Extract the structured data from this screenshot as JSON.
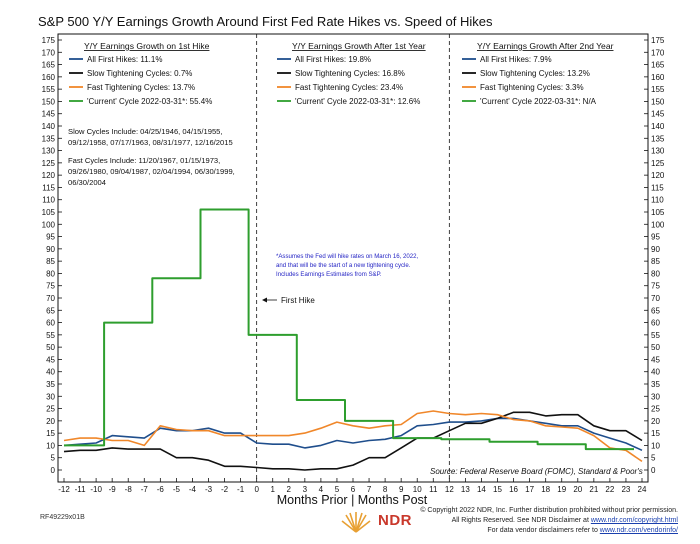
{
  "chart_data": {
    "type": "line",
    "title": "S&P 500 Y/Y Earnings Growth Around First Fed Rate Hikes vs. Speed of Hikes",
    "xlabel": "Months Prior | Months Post",
    "ylabel": "",
    "xlim": [
      -12,
      24
    ],
    "ylim": [
      0,
      175
    ],
    "y_ticks": [
      0,
      5,
      10,
      15,
      20,
      25,
      30,
      35,
      40,
      45,
      50,
      55,
      60,
      65,
      70,
      75,
      80,
      85,
      90,
      95,
      100,
      105,
      110,
      115,
      120,
      125,
      130,
      135,
      140,
      145,
      150,
      155,
      160,
      165,
      170,
      175
    ],
    "x_ticks": [
      -12,
      -11,
      -10,
      -9,
      -8,
      -7,
      -6,
      -5,
      -4,
      -3,
      -2,
      -1,
      0,
      1,
      2,
      3,
      4,
      5,
      6,
      7,
      8,
      9,
      10,
      11,
      12,
      13,
      14,
      15,
      16,
      17,
      18,
      19,
      20,
      21,
      22,
      23,
      24
    ],
    "x_tick_labels": [
      "-12",
      "-11",
      "-10",
      "-9",
      "-8",
      "-7",
      "-6",
      "-5",
      "-4",
      "-3",
      "-2",
      "-1",
      "0",
      "1",
      "2",
      "3",
      "4",
      "5",
      "6",
      "7",
      "8",
      "9",
      "10",
      "11",
      "12",
      "13",
      "14",
      "15",
      "16",
      "17",
      "18",
      "19",
      "20",
      "21",
      "22",
      "23",
      "24"
    ],
    "vertical_markers": [
      0,
      12
    ],
    "series": [
      {
        "name": "All First Hikes",
        "color": "#1f4e8c",
        "type": "line",
        "x": [
          -12,
          -11,
          -10,
          -9,
          -8,
          -7,
          -6,
          -5,
          -4,
          -3,
          -2,
          -1,
          0,
          1,
          2,
          3,
          4,
          5,
          6,
          7,
          8,
          9,
          10,
          11,
          12,
          13,
          14,
          15,
          16,
          17,
          18,
          19,
          20,
          21,
          22,
          23,
          24
        ],
        "y": [
          10,
          10.5,
          11,
          14,
          13.5,
          13,
          17,
          16,
          16,
          17,
          15,
          15,
          11,
          10.5,
          10.5,
          9,
          10,
          12,
          11,
          12,
          12.5,
          14,
          18,
          18.5,
          19.5,
          19.5,
          20,
          21,
          21,
          20,
          19,
          18,
          18,
          15,
          13,
          11,
          8
        ]
      },
      {
        "name": "Slow Tightening Cycles",
        "color": "#111111",
        "type": "line",
        "x": [
          -12,
          -11,
          -10,
          -9,
          -8,
          -7,
          -6,
          -5,
          -4,
          -3,
          -2,
          -1,
          0,
          1,
          2,
          3,
          4,
          5,
          6,
          7,
          8,
          9,
          10,
          11,
          12,
          13,
          14,
          15,
          16,
          17,
          18,
          19,
          20,
          21,
          22,
          23,
          24
        ],
        "y": [
          7.5,
          8,
          8,
          9,
          8.5,
          8.5,
          8.5,
          5,
          5,
          4,
          1.5,
          1.5,
          1,
          0.5,
          0.5,
          0,
          0.5,
          0.5,
          2,
          5,
          5,
          9,
          13,
          13,
          16,
          19,
          19,
          21,
          23.5,
          23.5,
          22,
          22.5,
          22.5,
          18,
          16,
          16,
          12
        ]
      },
      {
        "name": "Fast Tightening Cycles",
        "color": "#f0872a",
        "type": "line",
        "x": [
          -12,
          -11,
          -10,
          -9,
          -8,
          -7,
          -6,
          -5,
          -4,
          -3,
          -2,
          -1,
          0,
          1,
          2,
          3,
          4,
          5,
          6,
          7,
          8,
          9,
          10,
          11,
          12,
          13,
          14,
          15,
          16,
          17,
          18,
          19,
          20,
          21,
          22,
          23,
          24
        ],
        "y": [
          12,
          13,
          13,
          12,
          12,
          10,
          18,
          16.5,
          16,
          16,
          14,
          14,
          14,
          14,
          14,
          15,
          17,
          19.5,
          18,
          17,
          18,
          18.5,
          23,
          24,
          23,
          22.5,
          23,
          22.5,
          20.5,
          20,
          18,
          17.5,
          17,
          14,
          9,
          8,
          3.5
        ]
      },
      {
        "name": "'Current' Cycle 2022-03-31*",
        "color": "#2e9e2e",
        "type": "step",
        "x": [
          -12,
          -11,
          -10,
          -9,
          -8,
          -7,
          -6,
          -5,
          -4,
          -3,
          -2,
          -1,
          0,
          1,
          2,
          3,
          4,
          5,
          6,
          7,
          8,
          9,
          10,
          11,
          12,
          13,
          14,
          15,
          16,
          17,
          18,
          19,
          20,
          21,
          22,
          23
        ],
        "y": [
          10,
          10,
          10,
          60,
          60,
          60,
          78,
          78,
          78,
          106,
          106,
          106,
          55,
          55,
          55,
          28.5,
          28.5,
          28.5,
          20,
          20,
          20,
          13,
          13,
          13,
          12.5,
          12.5,
          12.5,
          11.5,
          11.5,
          11.5,
          10.5,
          10.5,
          10.5,
          8.5,
          8.5,
          8.5
        ]
      }
    ],
    "legend_panels": [
      {
        "title": "Y/Y Earnings Growth on 1st Hike",
        "entries": [
          "All First Hikes: 11.1%",
          "Slow Tightening Cycles: 0.7%",
          "Fast Tightening Cycles: 13.7%",
          "'Current' Cycle 2022-03-31*: 55.4%"
        ]
      },
      {
        "title": "Y/Y Earnings Growth After 1st Year",
        "entries": [
          "All First Hikes: 19.8%",
          "Slow Tightening Cycles: 16.8%",
          "Fast Tightening Cycles: 23.4%",
          "'Current' Cycle 2022-03-31*: 12.6%"
        ]
      },
      {
        "title": "Y/Y Earnings Growth After 2nd Year",
        "entries": [
          "All First Hikes: 7.9%",
          "Slow Tightening Cycles: 13.2%",
          "Fast Tightening Cycles: 3.3%",
          "'Current' Cycle 2022-03-31*: N/A"
        ]
      }
    ],
    "cycle_notes": [
      "Slow Cycles Include: 04/25/1946, 04/15/1955,",
      "09/12/1958, 07/17/1963, 08/31/1977, 12/16/2015",
      "Fast Cycles Include: 11/20/1967, 01/15/1973,",
      "09/26/1980, 09/04/1987, 02/04/1994, 06/30/1999,",
      "06/30/2004"
    ],
    "assumption_note": [
      "*Assumes the Fed will hike rates on March 16, 2022,",
      "and that will be the start of a new tightening cycle.",
      "Includes Earnings Estimates from S&P."
    ],
    "annotation": "First Hike",
    "source": "Source:   Federal Reserve Board (FOMC), Standard & Poor's"
  },
  "footer": {
    "code": "RF49229x01B",
    "brand": "NDR",
    "copyright_line1": "© Copyright 2022 NDR, Inc. Further distribution prohibited without prior permission.",
    "copyright_line2_prefix": "All Rights Reserved. See NDR Disclaimer at ",
    "copyright_link1": "www.ndr.com/copyright.html",
    "copyright_line3_prefix": "For data vendor disclaimers refer to ",
    "copyright_link2": "www.ndr.com/vendorinfo/"
  },
  "colors": {
    "all": "#1f4e8c",
    "slow": "#111111",
    "fast": "#f0872a",
    "current": "#2e9e2e",
    "brand": "#c9382b"
  }
}
